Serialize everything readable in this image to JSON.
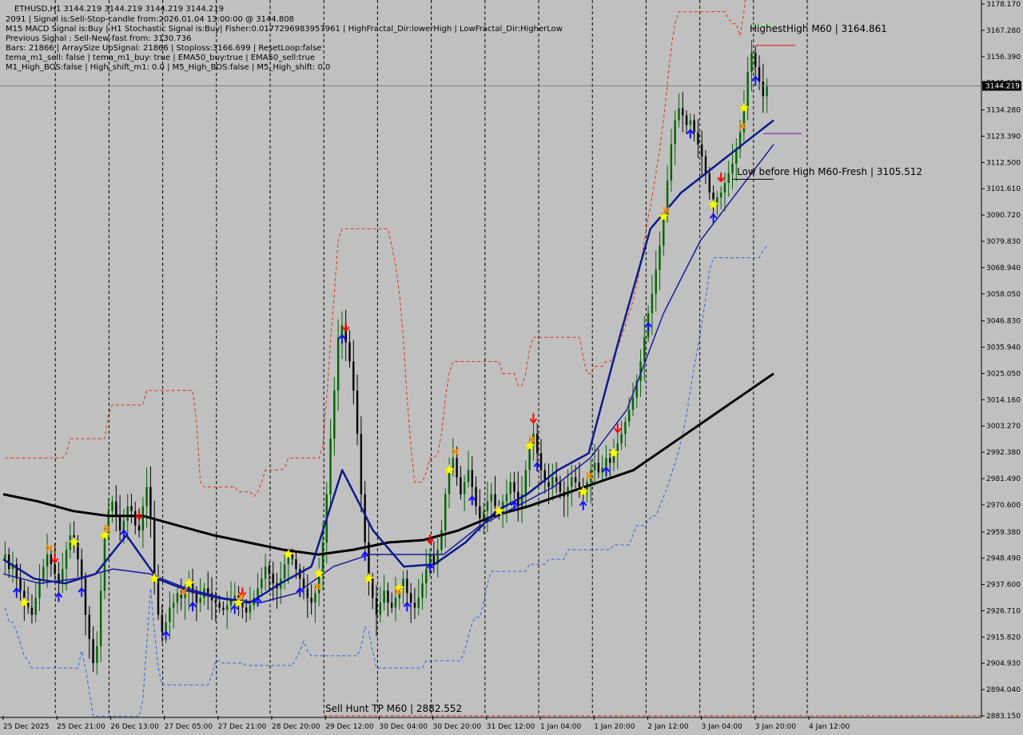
{
  "header": {
    "symbol_line": "ETHUSD,H1  3144.219 3144.219 3144.219 3144.219",
    "info_lines": [
      "2091 | Signal is:Sell-Stop-candle from:2026.01.04 13:00:00 @ 3144.808",
      "M15 MACD Signal is:Buy | H1 Stochastic Signal is:Buy| Fisher:0.0177296983957961 | HighFractal_Dir:lowerHigh | LowFractal_Dir:HigherLow",
      "Previous Signal : Sell-New-fast from: 3130.736",
      "Bars: 21866 | ArraySize UpSignal: 21866 | Stoploss:3166.699 | ResetLoop:false",
      "tema_m1_sell: false | tema_m1_buy: true | EMA50_buy:true | EMA50_sell:true",
      "M1_High_BOS:false | High_shift_m1: 0.0 | M5_High_BOS:false | M5_High_shift: 0.0"
    ]
  },
  "price_axis": {
    "ticks": [
      "3178.170",
      "3167.280",
      "3156.390",
      "3145.500",
      "3134.280",
      "3123.390",
      "3112.500",
      "3101.610",
      "3090.720",
      "3079.830",
      "3068.940",
      "3058.050",
      "3046.830",
      "3035.940",
      "3025.050",
      "3014.160",
      "3003.270",
      "2992.380",
      "2981.490",
      "2970.600",
      "2959.380",
      "2948.490",
      "2937.600",
      "2926.710",
      "2915.820",
      "2904.930",
      "2894.040",
      "2883.150"
    ],
    "current_price": "3144.219",
    "current_price_value": 3144.219,
    "ylim": [
      2883.15,
      3178.17
    ]
  },
  "time_axis": {
    "ticks": [
      "25 Dec 2025",
      "25 Dec 21:00",
      "26 Dec 13:00",
      "27 Dec 05:00",
      "27 Dec 21:00",
      "28 Dec 20:00",
      "29 Dec 12:00",
      "30 Dec 04:00",
      "30 Dec 20:00",
      "31 Dec 12:00",
      "1 Jan 04:00",
      "1 Jan 20:00",
      "2 Jan 12:00",
      "3 Jan 04:00",
      "3 Jan 20:00",
      "4 Jan 12:00"
    ]
  },
  "annotations": {
    "highest_high": "HighestHigh   M60 | 3164.861",
    "low_before_high": "Low before High   M60-Fresh | 3105.512",
    "sell_hunt": "Sell Hunt TP M60 | 2882.552"
  },
  "colors": {
    "background": "#c0c0c0",
    "bull_candle": "#006400",
    "bear_candle": "#000000",
    "ema_200": "#000000",
    "ema_fast": "#0c1a8c",
    "ema_mid": "#1a1a9c",
    "band_upper": "#e03010",
    "band_lower": "#3060e0",
    "arrow_up": "#1010ff",
    "arrow_down": "#ff0000",
    "star": "#ffff00",
    "cross": "#ff8c00"
  },
  "chart_data": {
    "type": "candlestick",
    "title": "ETHUSD,H1",
    "interval": "H1",
    "ylim": [
      2883.15,
      3178.17
    ],
    "grid": "vertical dashed session separators",
    "ohlc_close_path": [
      2950,
      2944,
      2946,
      2940,
      2935,
      2930,
      2928,
      2925,
      2932,
      2940,
      2945,
      2950,
      2946,
      2942,
      2938,
      2944,
      2952,
      2958,
      2955,
      2948,
      2940,
      2925,
      2915,
      2905,
      2912,
      2935,
      2958,
      2968,
      2972,
      2966,
      2960,
      2964,
      2970,
      2968,
      2962,
      2960,
      2970,
      2978,
      2965,
      2940,
      2925,
      2918,
      2922,
      2928,
      2930,
      2934,
      2932,
      2935,
      2938,
      2934,
      2930,
      2932,
      2936,
      2934,
      2931,
      2930,
      2928,
      2927,
      2929,
      2931,
      2933,
      2930,
      2928,
      2926,
      2929,
      2932,
      2936,
      2940,
      2945,
      2942,
      2938,
      2936,
      2940,
      2946,
      2950,
      2948,
      2944,
      2940,
      2936,
      2932,
      2930,
      2934,
      2942,
      2955,
      2975,
      2998,
      3018,
      3040,
      3045,
      3038,
      3030,
      3018,
      3000,
      2975,
      2955,
      2940,
      2932,
      2925,
      2930,
      2935,
      2930,
      2928,
      2932,
      2936,
      2940,
      2934,
      2930,
      2928,
      2932,
      2938,
      2944,
      2950,
      2946,
      2952,
      2960,
      2975,
      2985,
      2990,
      2982,
      2975,
      2980,
      2985,
      2978,
      2970,
      2965,
      2968,
      2972,
      2975,
      2970,
      2968,
      2972,
      2975,
      2980,
      2976,
      2970,
      2975,
      2985,
      2995,
      3000,
      2992,
      2985,
      2980,
      2978,
      2982,
      2980,
      2976,
      2974,
      2978,
      2982,
      2980,
      2978,
      2976,
      2980,
      2985,
      2988,
      2984,
      2986,
      2990,
      2988,
      2992,
      2996,
      3000,
      3005,
      3010,
      3015,
      3022,
      3030,
      3040,
      3050,
      3058,
      3068,
      3078,
      3090,
      3105,
      3120,
      3130,
      3135,
      3132,
      3128,
      3130,
      3125,
      3120,
      3115,
      3108,
      3100,
      3095,
      3098,
      3100,
      3104,
      3108,
      3112,
      3118,
      3125,
      3135,
      3150,
      3158,
      3152,
      3146,
      3140,
      3144
    ],
    "indicators": [
      {
        "kind": "ema",
        "color": "#000000",
        "values": [
          2975,
          2972,
          2968,
          2966,
          2966,
          2962,
          2958,
          2955,
          2952,
          2950,
          2952,
          2955,
          2956,
          2960,
          2966,
          2970,
          2975,
          2980,
          2985,
          2995,
          3005,
          3015,
          3025
        ]
      },
      {
        "kind": "ema",
        "color": "#0c1a8c",
        "values": [
          2948,
          2940,
          2938,
          2942,
          2958,
          2940,
          2935,
          2932,
          2930,
          2938,
          2945,
          2985,
          2960,
          2945,
          2946,
          2955,
          2968,
          2975,
          2985,
          2992,
          3040,
          3085,
          3100,
          3110,
          3120,
          3130
        ]
      },
      {
        "kind": "ema",
        "color": "#1a1a9c",
        "values": [
          2942,
          2938,
          2940,
          2944,
          2942,
          2936,
          2932,
          2930,
          2934,
          2945,
          2950,
          2950,
          2950,
          2962,
          2970,
          2978,
          2990,
          3010,
          3050,
          3080,
          3100,
          3120
        ]
      }
    ],
    "signals": {
      "up_arrows": 22,
      "down_arrows": 8,
      "stars": 18,
      "crosses": 11
    },
    "levels": [
      {
        "label": "HighestHigh   M60 | 3164.861",
        "value": 3164.861
      },
      {
        "label": "Low before High   M60-Fresh | 3105.512",
        "value": 3105.512
      },
      {
        "label": "Sell Hunt TP M60 | 2882.552",
        "value": 2882.552
      }
    ]
  }
}
